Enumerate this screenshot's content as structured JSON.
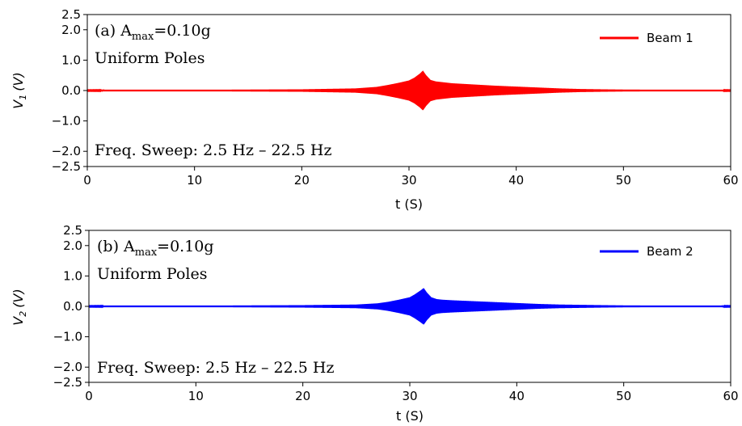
{
  "chart_data": [
    {
      "type": "line",
      "panel": "top",
      "xlabel": "t (S)",
      "ylabel": "V",
      "ylabel_sub": "1",
      "ylabel_unit": "(V)",
      "xlim": [
        0,
        60
      ],
      "ylim": [
        -2.5,
        2.5
      ],
      "xticks": [
        0,
        10,
        20,
        30,
        40,
        50,
        60
      ],
      "xtick_labels": [
        "0",
        "10",
        "20",
        "30",
        "40",
        "50",
        "60"
      ],
      "yticks": [
        2.5,
        2.0,
        1.0,
        0.0,
        -1.0,
        -2.0,
        -2.5
      ],
      "ytick_labels": [
        "2.5",
        "2.0",
        "1.0",
        "0.0",
        "−1.0",
        "−2.0",
        "−2.5"
      ],
      "grid": false,
      "legend_position": "top-right",
      "annotations": {
        "label": "(a) A",
        "label_sub": "max",
        "label_value": "=0.10g",
        "line2": "Uniform Poles",
        "sweep": "Freq. Sweep: 2.5 Hz – 22.5 Hz"
      },
      "series": [
        {
          "name": "Beam 1",
          "color": "#ff0000",
          "envelope_t": [
            0,
            10,
            15,
            20,
            25,
            27,
            28,
            29,
            30,
            30.5,
            31,
            31.3,
            31.6,
            32,
            32.5,
            33,
            34,
            36,
            38,
            40,
            42,
            44,
            46,
            48,
            50,
            55,
            60
          ],
          "envelope_amp": [
            0.01,
            0.02,
            0.03,
            0.04,
            0.07,
            0.12,
            0.18,
            0.25,
            0.33,
            0.42,
            0.55,
            0.65,
            0.5,
            0.35,
            0.3,
            0.28,
            0.24,
            0.2,
            0.16,
            0.13,
            0.1,
            0.07,
            0.05,
            0.04,
            0.03,
            0.02,
            0.01
          ]
        }
      ]
    },
    {
      "type": "line",
      "panel": "bottom",
      "xlabel": "t (S)",
      "ylabel": "V",
      "ylabel_sub": "2",
      "ylabel_unit": "(V)",
      "xlim": [
        0,
        60
      ],
      "ylim": [
        -2.5,
        2.5
      ],
      "xticks": [
        0,
        10,
        20,
        30,
        40,
        50,
        60
      ],
      "xtick_labels": [
        "0",
        "10",
        "20",
        "30",
        "40",
        "50",
        "60"
      ],
      "yticks": [
        2.5,
        2.0,
        1.0,
        0.0,
        -1.0,
        -2.0,
        -2.5
      ],
      "ytick_labels": [
        "2.5",
        "2.0",
        "1.0",
        "0.0",
        "−1.0",
        "−2.0",
        "−2.5"
      ],
      "grid": false,
      "legend_position": "top-right",
      "annotations": {
        "label": "(b) A",
        "label_sub": "max",
        "label_value": "=0.10g",
        "line2": "Uniform Poles",
        "sweep": "Freq. Sweep: 2.5 Hz – 22.5 Hz"
      },
      "series": [
        {
          "name": "Beam 2",
          "color": "#0000ff",
          "envelope_t": [
            0,
            10,
            15,
            20,
            25,
            27,
            28,
            29,
            30,
            30.5,
            31,
            31.3,
            31.6,
            32,
            32.5,
            33,
            34,
            36,
            38,
            40,
            42,
            44,
            46,
            48,
            50,
            55,
            60
          ],
          "envelope_amp": [
            0.01,
            0.02,
            0.03,
            0.04,
            0.06,
            0.1,
            0.15,
            0.22,
            0.3,
            0.4,
            0.52,
            0.6,
            0.45,
            0.3,
            0.24,
            0.22,
            0.2,
            0.17,
            0.14,
            0.11,
            0.08,
            0.06,
            0.05,
            0.04,
            0.03,
            0.02,
            0.01
          ]
        }
      ]
    }
  ]
}
